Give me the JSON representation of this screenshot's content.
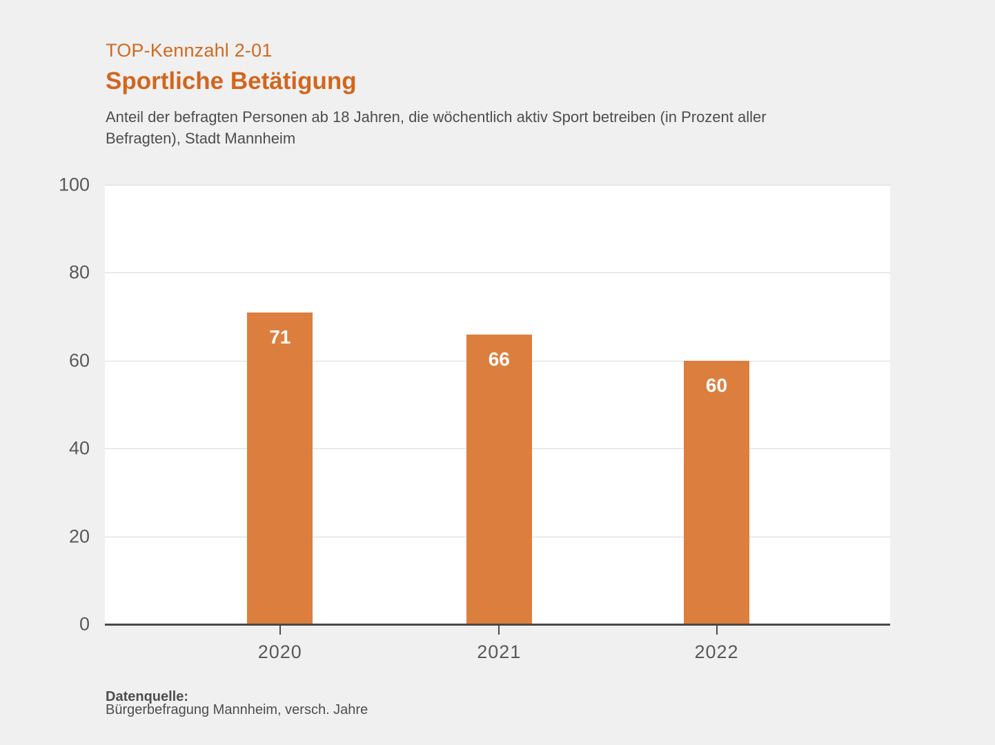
{
  "header": {
    "kicker": "TOP-Kennzahl 2-01",
    "title": "Sportliche Betätigung",
    "subtitle": "Anteil der befragten Personen ab 18 Jahren, die wöchentlich aktiv Sport betreiben (in Prozent aller Befragten), Stadt Mannheim"
  },
  "chart_data": {
    "type": "bar",
    "categories": [
      "2020",
      "2021",
      "2022"
    ],
    "values": [
      71,
      66,
      60
    ],
    "title": "Sportliche Betätigung",
    "xlabel": "",
    "ylabel": "",
    "ylim": [
      0,
      100
    ],
    "yticks": [
      0,
      20,
      40,
      60,
      80,
      100
    ],
    "grid": true,
    "legend": false,
    "bar_color": "#dc7f3e",
    "bar_label_color": "#ffffff",
    "bar_centers_pct": [
      22.3,
      50.2,
      77.9
    ]
  },
  "footer": {
    "source_label": "Datenquelle:",
    "source_text": "Bürgerbefragung Mannheim, versch. Jahre"
  },
  "colors": {
    "background": "#f0f0f1",
    "plot_background": "#ffffff",
    "accent_orange": "#d2691e",
    "gridline": "#d9d9d9",
    "axis": "#474747",
    "tick_text": "#595959",
    "body_text": "#4d4d4d"
  }
}
